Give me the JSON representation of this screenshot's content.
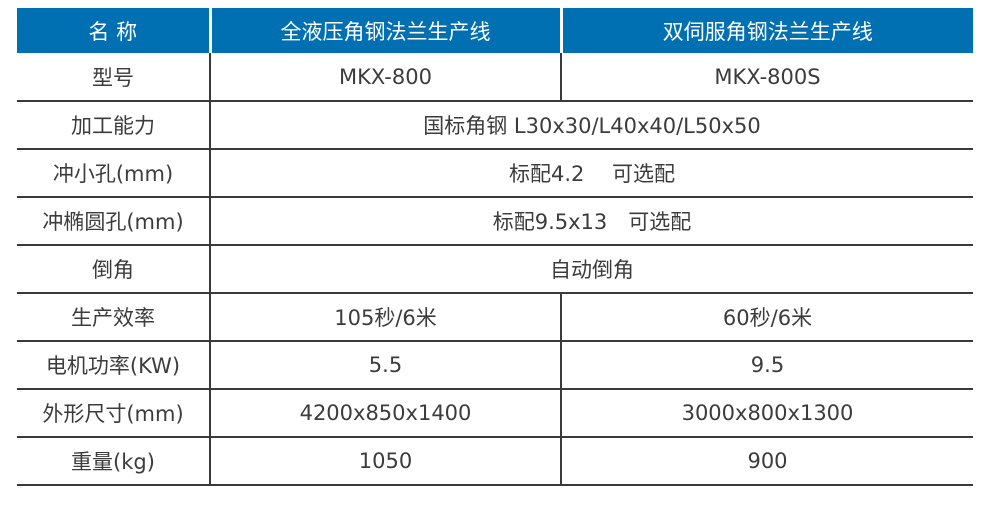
{
  "colors": {
    "accent": "#0070b2",
    "line": "#3a3a3a",
    "text": "#3c3c3c",
    "header_text": "#ffffff"
  },
  "table": {
    "header": [
      "名 称",
      "全液压角钢法兰生产线",
      "双伺服角钢法兰生产线"
    ],
    "rows": [
      {
        "label": "型号",
        "span": false,
        "values": [
          "MKX-800",
          "MKX-800S"
        ]
      },
      {
        "label": "加工能力",
        "span": true,
        "values": [
          "国标角钢 L30x30/L40x40/L50x50"
        ]
      },
      {
        "label": "冲小孔(mm)",
        "span": true,
        "values": [
          "标配4.2　 可选配"
        ]
      },
      {
        "label": "冲椭圆孔(mm)",
        "span": true,
        "values": [
          "标配9.5x13　可选配"
        ]
      },
      {
        "label": "倒角",
        "span": true,
        "values": [
          "自动倒角"
        ]
      },
      {
        "label": "生产效率",
        "span": false,
        "values": [
          "105秒/6米",
          "60秒/6米"
        ]
      },
      {
        "label": "电机功率(KW)",
        "span": false,
        "values": [
          "5.5",
          "9.5"
        ]
      },
      {
        "label": "外形尺寸(mm)",
        "span": false,
        "values": [
          "4200x850x1400",
          "3000x800x1300"
        ]
      },
      {
        "label": "重量(kg)",
        "span": false,
        "values": [
          "1050",
          "900"
        ]
      }
    ]
  }
}
